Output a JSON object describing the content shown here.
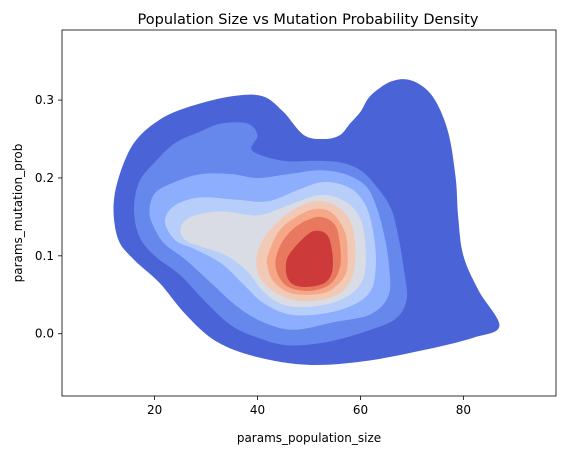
{
  "chart_data": {
    "type": "kde-contour",
    "title": "Population Size vs Mutation Probability Density",
    "xlabel": "params_population_size",
    "ylabel": "params_mutation_prob",
    "xlim": [
      2,
      98
    ],
    "ylim": [
      -0.08,
      0.39
    ],
    "x_ticks": [
      20,
      40,
      60,
      80
    ],
    "y_ticks": [
      0.0,
      0.1,
      0.2,
      0.3
    ],
    "x_tick_labels": [
      "20",
      "40",
      "60",
      "80"
    ],
    "y_tick_labels": [
      "0.0",
      "0.1",
      "0.2",
      "0.3"
    ],
    "grid": false,
    "colormap": "coolwarm",
    "levels": [
      {
        "level": 1,
        "color": "#4a63d6",
        "points": [
          [
            12,
            0.16
          ],
          [
            13,
            0.2
          ],
          [
            16,
            0.245
          ],
          [
            21,
            0.275
          ],
          [
            27,
            0.292
          ],
          [
            35,
            0.305
          ],
          [
            41,
            0.305
          ],
          [
            45,
            0.285
          ],
          [
            49,
            0.255
          ],
          [
            53,
            0.25
          ],
          [
            56,
            0.255
          ],
          [
            58,
            0.27
          ],
          [
            60,
            0.285
          ],
          [
            62,
            0.306
          ],
          [
            66,
            0.324
          ],
          [
            70,
            0.325
          ],
          [
            74,
            0.305
          ],
          [
            77,
            0.26
          ],
          [
            78.5,
            0.2
          ],
          [
            79,
            0.15
          ],
          [
            80,
            0.1
          ],
          [
            83,
            0.055
          ],
          [
            87,
            0.01
          ],
          [
            82,
            -0.005
          ],
          [
            73,
            -0.02
          ],
          [
            61,
            -0.035
          ],
          [
            50,
            -0.04
          ],
          [
            40,
            -0.03
          ],
          [
            32,
            -0.01
          ],
          [
            26,
            0.025
          ],
          [
            21,
            0.065
          ],
          [
            16,
            0.095
          ],
          [
            13,
            0.12
          ]
        ]
      },
      {
        "level": 2,
        "color": "#6687ec",
        "points": [
          [
            16,
            0.16
          ],
          [
            17,
            0.195
          ],
          [
            20,
            0.22
          ],
          [
            24,
            0.245
          ],
          [
            29,
            0.26
          ],
          [
            33,
            0.27
          ],
          [
            38,
            0.27
          ],
          [
            40,
            0.255
          ],
          [
            39,
            0.235
          ],
          [
            45,
            0.222
          ],
          [
            51,
            0.222
          ],
          [
            56,
            0.22
          ],
          [
            60,
            0.21
          ],
          [
            63,
            0.19
          ],
          [
            66,
            0.16
          ],
          [
            67.5,
            0.12
          ],
          [
            68.5,
            0.08
          ],
          [
            69,
            0.045
          ],
          [
            67,
            0.02
          ],
          [
            62,
            0.005
          ],
          [
            54,
            -0.01
          ],
          [
            46,
            -0.015
          ],
          [
            40,
            -0.005
          ],
          [
            35,
            0.01
          ],
          [
            30,
            0.04
          ],
          [
            25,
            0.075
          ],
          [
            20,
            0.1
          ],
          [
            17,
            0.125
          ]
        ]
      },
      {
        "level": 3,
        "color": "#8caefc",
        "points": [
          [
            19,
            0.155
          ],
          [
            20,
            0.18
          ],
          [
            24,
            0.195
          ],
          [
            29,
            0.205
          ],
          [
            35,
            0.205
          ],
          [
            40,
            0.2
          ],
          [
            46,
            0.205
          ],
          [
            52,
            0.21
          ],
          [
            57,
            0.205
          ],
          [
            61,
            0.19
          ],
          [
            63,
            0.165
          ],
          [
            64.5,
            0.13
          ],
          [
            65.5,
            0.09
          ],
          [
            65.5,
            0.05
          ],
          [
            62,
            0.025
          ],
          [
            55,
            0.015
          ],
          [
            47,
            0.005
          ],
          [
            41,
            0.015
          ],
          [
            36,
            0.035
          ],
          [
            31,
            0.065
          ],
          [
            26,
            0.095
          ],
          [
            22,
            0.115
          ],
          [
            20,
            0.135
          ]
        ]
      },
      {
        "level": 4,
        "color": "#b7cdfa",
        "points": [
          [
            22,
            0.145
          ],
          [
            24,
            0.165
          ],
          [
            29,
            0.175
          ],
          [
            36,
            0.172
          ],
          [
            42,
            0.17
          ],
          [
            48,
            0.185
          ],
          [
            53,
            0.195
          ],
          [
            58,
            0.187
          ],
          [
            61,
            0.165
          ],
          [
            62.5,
            0.13
          ],
          [
            63,
            0.09
          ],
          [
            62,
            0.055
          ],
          [
            58,
            0.035
          ],
          [
            52,
            0.025
          ],
          [
            46,
            0.025
          ],
          [
            41,
            0.04
          ],
          [
            37,
            0.065
          ],
          [
            33,
            0.09
          ],
          [
            28,
            0.108
          ],
          [
            24,
            0.12
          ]
        ]
      },
      {
        "level": 5,
        "color": "#d9dce5",
        "points": [
          [
            25,
            0.135
          ],
          [
            27,
            0.15
          ],
          [
            33,
            0.157
          ],
          [
            40,
            0.152
          ],
          [
            46,
            0.165
          ],
          [
            52,
            0.178
          ],
          [
            57,
            0.17
          ],
          [
            60,
            0.147
          ],
          [
            61,
            0.11
          ],
          [
            60.5,
            0.07
          ],
          [
            57,
            0.046
          ],
          [
            51,
            0.035
          ],
          [
            45,
            0.037
          ],
          [
            41,
            0.055
          ],
          [
            38,
            0.08
          ],
          [
            34,
            0.1
          ],
          [
            29,
            0.112
          ],
          [
            26,
            0.12
          ]
        ]
      },
      {
        "level": 6,
        "color": "#f2c9b4",
        "points": [
          [
            40,
            0.105
          ],
          [
            42,
            0.13
          ],
          [
            46,
            0.155
          ],
          [
            51,
            0.17
          ],
          [
            55,
            0.165
          ],
          [
            58,
            0.145
          ],
          [
            59,
            0.11
          ],
          [
            58.5,
            0.075
          ],
          [
            56,
            0.052
          ],
          [
            51,
            0.042
          ],
          [
            46,
            0.045
          ],
          [
            42,
            0.06
          ],
          [
            40,
            0.08
          ]
        ]
      },
      {
        "level": 7,
        "color": "#f5a788",
        "points": [
          [
            42,
            0.1
          ],
          [
            44,
            0.13
          ],
          [
            47,
            0.148
          ],
          [
            51,
            0.16
          ],
          [
            54.5,
            0.155
          ],
          [
            57,
            0.13
          ],
          [
            57.5,
            0.1
          ],
          [
            57,
            0.075
          ],
          [
            54,
            0.055
          ],
          [
            50,
            0.05
          ],
          [
            46,
            0.053
          ],
          [
            43,
            0.068
          ],
          [
            42,
            0.085
          ]
        ]
      },
      {
        "level": 8,
        "color": "#e8795e",
        "points": [
          [
            43.5,
            0.095
          ],
          [
            45,
            0.12
          ],
          [
            48,
            0.14
          ],
          [
            52,
            0.15
          ],
          [
            55,
            0.14
          ],
          [
            56,
            0.115
          ],
          [
            56,
            0.085
          ],
          [
            54,
            0.063
          ],
          [
            50,
            0.055
          ],
          [
            46,
            0.06
          ],
          [
            44,
            0.075
          ]
        ]
      },
      {
        "level": 9,
        "color": "#cc3b3a",
        "points": [
          [
            45.5,
            0.085
          ],
          [
            46,
            0.1
          ],
          [
            48.5,
            0.12
          ],
          [
            51,
            0.132
          ],
          [
            53.5,
            0.127
          ],
          [
            54.5,
            0.105
          ],
          [
            54.5,
            0.08
          ],
          [
            53,
            0.065
          ],
          [
            49.5,
            0.06
          ],
          [
            47,
            0.063
          ],
          [
            45.8,
            0.072
          ]
        ]
      }
    ]
  }
}
